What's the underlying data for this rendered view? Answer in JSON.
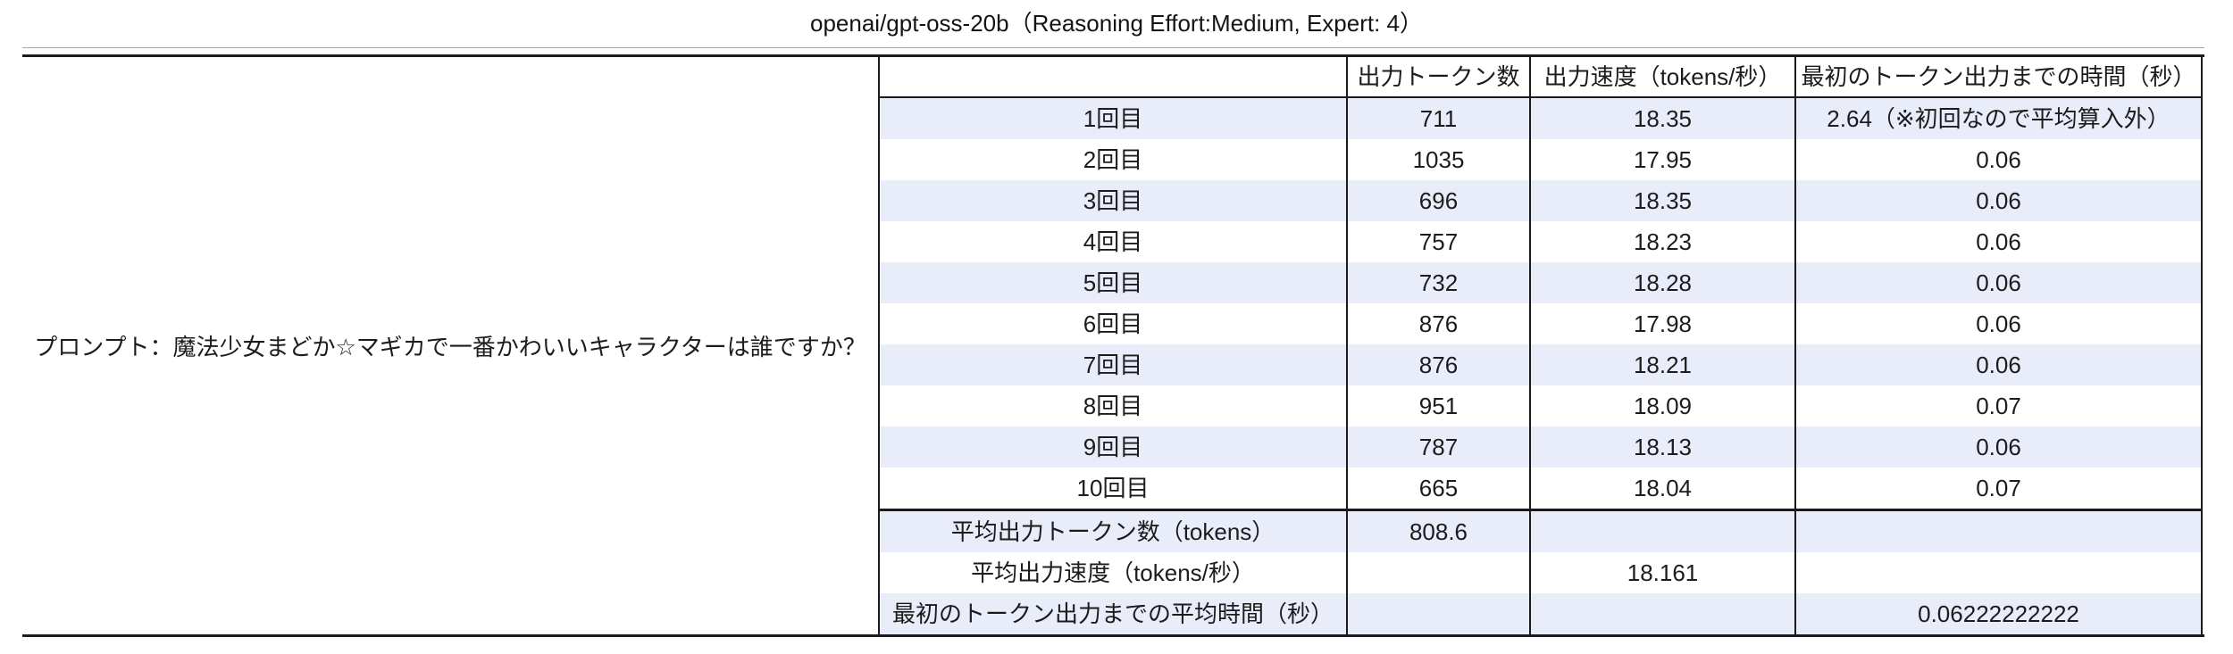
{
  "title": "openai/gpt-oss-20b（Reasoning Effort:Medium, Expert: 4）",
  "prompt_label": "プロンプト：魔法少女まどか☆マギカで一番かわいいキャラクターは誰ですか？",
  "colors": {
    "stripe_row": "#e9edf9",
    "border": "#1b1b1b",
    "text": "#1c1c1c"
  },
  "chart_data": {
    "type": "table",
    "title": "openai/gpt-oss-20b（Reasoning Effort:Medium, Expert: 4）",
    "columns": [
      "",
      "出力トークン数",
      "出力速度（tokens/秒）",
      "最初のトークン出力までの時間（秒）"
    ],
    "rows": [
      {
        "run": "1回目",
        "tokens": "711",
        "speed": "18.35",
        "ttft": "2.64（※初回なので平均算入外）"
      },
      {
        "run": "2回目",
        "tokens": "1035",
        "speed": "17.95",
        "ttft": "0.06"
      },
      {
        "run": "3回目",
        "tokens": "696",
        "speed": "18.35",
        "ttft": "0.06"
      },
      {
        "run": "4回目",
        "tokens": "757",
        "speed": "18.23",
        "ttft": "0.06"
      },
      {
        "run": "5回目",
        "tokens": "732",
        "speed": "18.28",
        "ttft": "0.06"
      },
      {
        "run": "6回目",
        "tokens": "876",
        "speed": "17.98",
        "ttft": "0.06"
      },
      {
        "run": "7回目",
        "tokens": "876",
        "speed": "18.21",
        "ttft": "0.06"
      },
      {
        "run": "8回目",
        "tokens": "951",
        "speed": "18.09",
        "ttft": "0.07"
      },
      {
        "run": "9回目",
        "tokens": "787",
        "speed": "18.13",
        "ttft": "0.06"
      },
      {
        "run": "10回目",
        "tokens": "665",
        "speed": "18.04",
        "ttft": "0.07"
      }
    ],
    "summary_rows": [
      {
        "label": "平均出力トークン数（tokens）",
        "tokens": "808.6",
        "speed": "",
        "ttft": ""
      },
      {
        "label": "平均出力速度（tokens/秒）",
        "tokens": "",
        "speed": "18.161",
        "ttft": ""
      },
      {
        "label": "最初のトークン出力までの平均時間（秒）",
        "tokens": "",
        "speed": "",
        "ttft": "0.06222222222"
      }
    ]
  }
}
